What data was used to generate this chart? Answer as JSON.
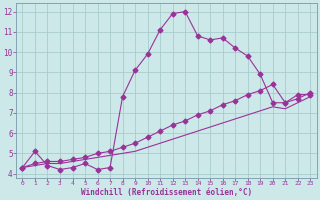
{
  "xlabel": "Windchill (Refroidissement éolien,°C)",
  "bg_color": "#cce8e8",
  "line_color": "#993399",
  "grid_color": "#aacccc",
  "xlim": [
    -0.5,
    23.5
  ],
  "ylim": [
    3.8,
    12.4
  ],
  "xticks": [
    0,
    1,
    2,
    3,
    4,
    5,
    6,
    7,
    8,
    9,
    10,
    11,
    12,
    13,
    14,
    15,
    16,
    17,
    18,
    19,
    20,
    21,
    22,
    23
  ],
  "yticks": [
    4,
    5,
    6,
    7,
    8,
    9,
    10,
    11,
    12
  ],
  "line1_x": [
    0,
    1,
    2,
    3,
    4,
    5,
    6,
    7,
    8,
    9,
    10,
    11,
    12,
    13,
    14,
    15,
    16,
    17,
    18,
    19,
    20,
    21,
    22,
    23
  ],
  "line1_y": [
    4.3,
    5.1,
    4.4,
    4.2,
    4.3,
    4.5,
    4.2,
    4.3,
    7.8,
    9.1,
    9.9,
    11.1,
    11.9,
    12.0,
    10.8,
    10.6,
    10.7,
    10.2,
    9.8,
    8.9,
    7.5,
    7.5,
    7.9,
    7.9
  ],
  "line2_x": [
    0,
    1,
    2,
    3,
    4,
    5,
    6,
    7,
    8,
    9,
    10,
    11,
    12,
    13,
    14,
    15,
    16,
    17,
    18,
    19,
    20,
    21,
    22,
    23
  ],
  "line2_y": [
    4.3,
    4.5,
    4.6,
    4.6,
    4.7,
    4.8,
    5.0,
    5.1,
    5.3,
    5.5,
    5.8,
    6.1,
    6.4,
    6.6,
    6.9,
    7.1,
    7.4,
    7.6,
    7.9,
    8.1,
    8.4,
    7.5,
    7.7,
    8.0
  ],
  "line3_x": [
    0,
    1,
    2,
    3,
    4,
    5,
    6,
    7,
    8,
    9,
    10,
    11,
    12,
    13,
    14,
    15,
    16,
    17,
    18,
    19,
    20,
    21,
    22,
    23
  ],
  "line3_y": [
    4.3,
    4.4,
    4.5,
    4.5,
    4.6,
    4.7,
    4.8,
    4.9,
    5.0,
    5.1,
    5.3,
    5.5,
    5.7,
    5.9,
    6.1,
    6.3,
    6.5,
    6.7,
    6.9,
    7.1,
    7.3,
    7.2,
    7.5,
    7.8
  ]
}
